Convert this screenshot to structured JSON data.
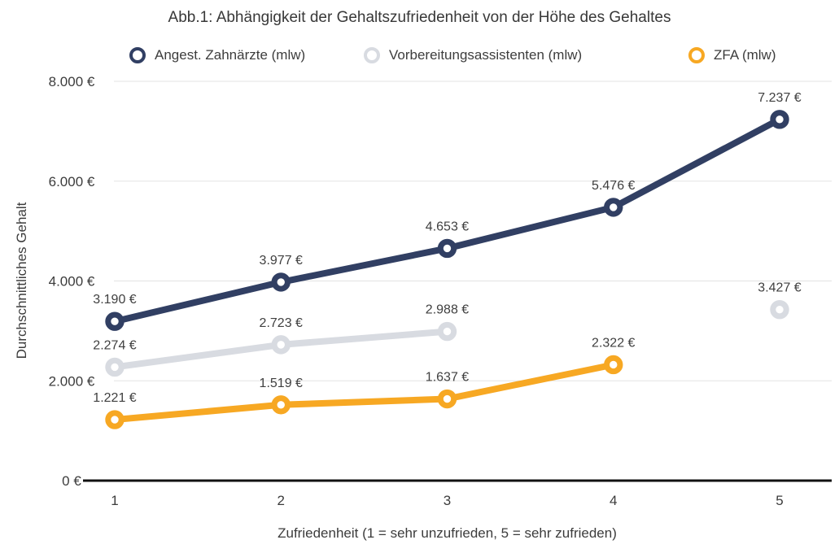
{
  "chart": {
    "title": "Abb.1: Abhängigkeit der Gehaltszufriedenheit von der Höhe des Gehaltes",
    "x_axis_title": "Zufriedenheit (1 = sehr unzufrieden, 5 = sehr zufrieden)",
    "y_axis_title": "Durchschnittliches Gehalt"
  },
  "chart_data": {
    "type": "line",
    "title": "Abb.1: Abhängigkeit der Gehaltszufriedenheit von der Höhe des Gehaltes",
    "xlabel": "Zufriedenheit (1 = sehr unzufrieden, 5 = sehr zufrieden)",
    "ylabel": "Durchschnittliches Gehalt",
    "x": [
      1,
      2,
      3,
      4,
      5
    ],
    "x_tick_labels": [
      "1",
      "2",
      "3",
      "4",
      "5"
    ],
    "y_ticks": [
      0,
      2000,
      4000,
      6000,
      8000
    ],
    "y_tick_labels": [
      "0 €",
      "2.000 €",
      "4.000 €",
      "6.000 €",
      "8.000 €"
    ],
    "ylim": [
      0,
      8000
    ],
    "grid": "horizontal",
    "legend_position": "top",
    "colors": {
      "grid": "#e3e3e3",
      "axis": "#111111",
      "text": "#3c3c3c",
      "marker_fill": "#ffffff"
    },
    "series": [
      {
        "name": "Angest. Zahnärzte (mlw)",
        "color": "#313f63",
        "values": [
          3190,
          3977,
          4653,
          5476,
          7237
        ],
        "labels": [
          "3.190 €",
          "3.977 €",
          "4.653 €",
          "5.476 €",
          "7.237 €"
        ]
      },
      {
        "name": "Vorbereitungsassistenten (mlw)",
        "color": "#d8dbe1",
        "values": [
          2274,
          2723,
          2988,
          null,
          3427
        ],
        "labels": [
          "2.274 €",
          "2.723 €",
          "2.988 €",
          null,
          "3.427 €"
        ]
      },
      {
        "name": "ZFA (mlw)",
        "color": "#f7a823",
        "values": [
          1221,
          1519,
          1637,
          2322,
          null
        ],
        "labels": [
          "1.221 €",
          "1.519 €",
          "1.637 €",
          "2.322 €",
          null
        ]
      }
    ]
  }
}
